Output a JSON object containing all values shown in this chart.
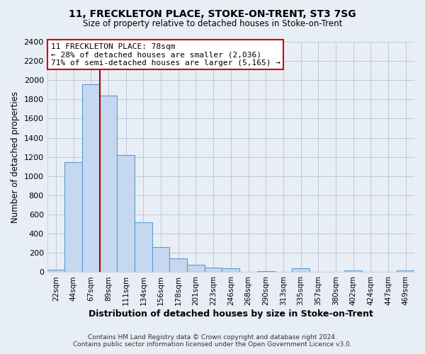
{
  "title": "11, FRECKLETON PLACE, STOKE-ON-TRENT, ST3 7SG",
  "subtitle": "Size of property relative to detached houses in Stoke-on-Trent",
  "xlabel": "Distribution of detached houses by size in Stoke-on-Trent",
  "ylabel": "Number of detached properties",
  "bar_labels": [
    "22sqm",
    "44sqm",
    "67sqm",
    "89sqm",
    "111sqm",
    "134sqm",
    "156sqm",
    "178sqm",
    "201sqm",
    "223sqm",
    "246sqm",
    "268sqm",
    "290sqm",
    "313sqm",
    "335sqm",
    "357sqm",
    "380sqm",
    "402sqm",
    "424sqm",
    "447sqm",
    "469sqm"
  ],
  "bar_heights": [
    25,
    1150,
    1960,
    1840,
    1220,
    520,
    265,
    145,
    75,
    45,
    40,
    5,
    10,
    5,
    40,
    5,
    5,
    15,
    5,
    5,
    15
  ],
  "bar_color": "#c5d8ef",
  "bar_edge_color": "#5b9bd5",
  "vline_x_index": 2,
  "vline_color": "#aa0000",
  "ylim": [
    0,
    2400
  ],
  "yticks": [
    0,
    200,
    400,
    600,
    800,
    1000,
    1200,
    1400,
    1600,
    1800,
    2000,
    2200,
    2400
  ],
  "annotation_title": "11 FRECKLETON PLACE: 78sqm",
  "annotation_line1": "← 28% of detached houses are smaller (2,036)",
  "annotation_line2": "71% of semi-detached houses are larger (5,165) →",
  "annotation_box_color": "#ffffff",
  "annotation_box_edge": "#cc0000",
  "footer_line1": "Contains HM Land Registry data © Crown copyright and database right 2024.",
  "footer_line2": "Contains public sector information licensed under the Open Government Licence v3.0.",
  "bg_color": "#e8eef5",
  "plot_bg_color": "#e8eef5",
  "grid_color": "#c0c8d8"
}
